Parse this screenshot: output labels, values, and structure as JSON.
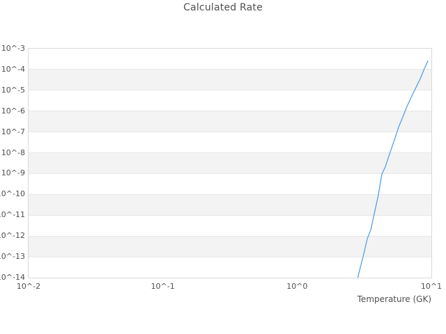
{
  "chart_data": {
    "type": "line",
    "title": "Calculated Rate",
    "xlabel": "Temperature (GK)",
    "ylabel": "",
    "x_scale": "log",
    "y_scale": "log",
    "xlim": [
      0.01,
      10
    ],
    "ylim": [
      1e-14,
      0.001
    ],
    "grid": "horizontal-zebra-bands",
    "legend_position": "none",
    "x_ticks": [
      {
        "label": "10^-2",
        "value": 0.01
      },
      {
        "label": "10^-1",
        "value": 0.1
      },
      {
        "label": "10^0",
        "value": 1
      },
      {
        "label": "10^1",
        "value": 10
      }
    ],
    "y_ticks": [
      {
        "label": "10^-3",
        "value": 0.001
      },
      {
        "label": "10^-4",
        "value": 0.0001
      },
      {
        "label": "10^-5",
        "value": 1e-05
      },
      {
        "label": "10^-6",
        "value": 1e-06
      },
      {
        "label": "10^-7",
        "value": 1e-07
      },
      {
        "label": "10^-8",
        "value": 1e-08
      },
      {
        "label": "10^-9",
        "value": 1e-09
      },
      {
        "label": "10^-10",
        "value": 1e-10
      },
      {
        "label": "10^-11",
        "value": 1e-11
      },
      {
        "label": "10^-12",
        "value": 1e-12
      },
      {
        "label": "10^-13",
        "value": 1e-13
      },
      {
        "label": "10^-14",
        "value": 1e-14
      }
    ],
    "series": [
      {
        "name": "Calculated Rate",
        "color": "#57a0e5",
        "x": [
          2.82,
          2.95,
          3.14,
          3.33,
          3.54,
          4.03,
          4.28,
          4.54,
          4.77,
          5.06,
          5.37,
          5.7,
          6.13,
          6.5,
          7.07,
          7.69,
          8.26,
          8.87,
          9.42
        ],
        "y": [
          9e-15,
          2.9e-14,
          1.4e-13,
          7.4e-13,
          2e-12,
          9.5e-11,
          9.5e-10,
          2.1e-09,
          5.6e-09,
          1.7e-08,
          5.2e-08,
          1.7e-07,
          5.3e-07,
          1.4e-06,
          4.6e-06,
          1.4e-05,
          3.6e-05,
          0.00011,
          0.00026
        ]
      }
    ]
  },
  "colors": {
    "line": "#57a0e5",
    "band_fill": "#f3f3f3",
    "gridline": "#e7e7e7",
    "plot_border": "#d9d9d9",
    "text": "#4f4f4f",
    "background": "#ffffff"
  }
}
